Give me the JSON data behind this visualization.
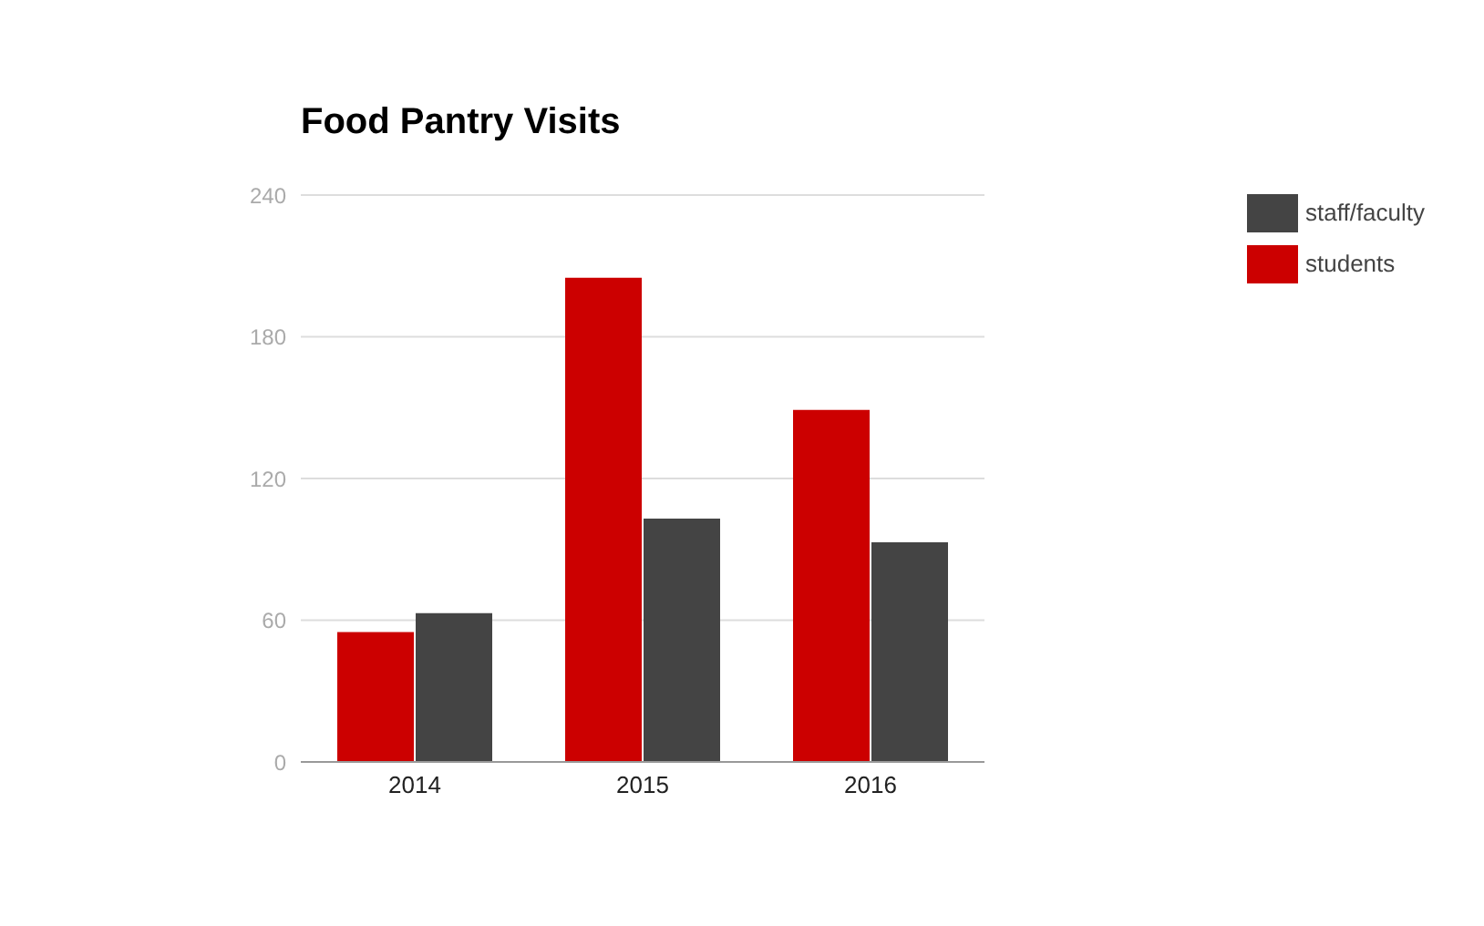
{
  "chart_data": {
    "type": "bar",
    "title": "Food Pantry Visits",
    "categories": [
      "2014",
      "2015",
      "2016"
    ],
    "series": [
      {
        "name": "students",
        "color": "#cc0000",
        "values": [
          55,
          205,
          149
        ]
      },
      {
        "name": "staff/faculty",
        "color": "#444444",
        "values": [
          63,
          103,
          93
        ]
      }
    ],
    "ylim": [
      0,
      240
    ],
    "yticks": [
      0,
      60,
      120,
      180,
      240
    ],
    "grid": "y",
    "legend": "top right"
  }
}
